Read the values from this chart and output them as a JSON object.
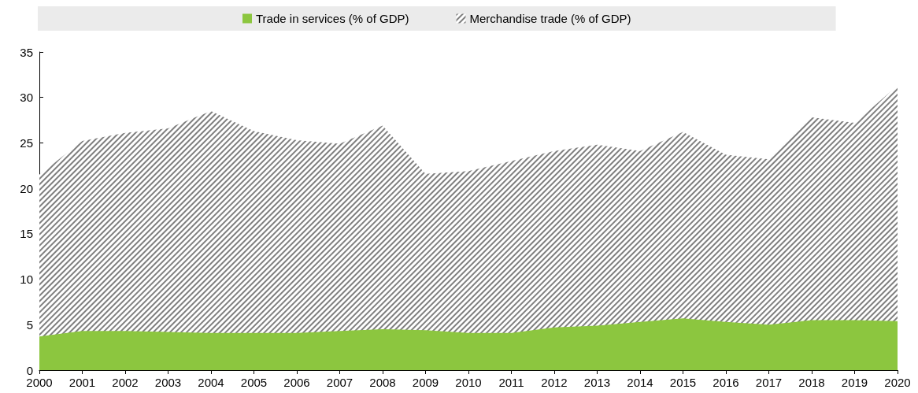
{
  "chart_data": {
    "type": "area",
    "categories": [
      "2000",
      "2001",
      "2002",
      "2003",
      "2004",
      "2005",
      "2006",
      "2007",
      "2008",
      "2009",
      "2010",
      "2011",
      "2012",
      "2013",
      "2014",
      "2015",
      "2016",
      "2017",
      "2018",
      "2019",
      "2020"
    ],
    "series": [
      {
        "name": "Merchandise trade (% of GDP)",
        "color": "#7f7f7f",
        "values": [
          21.5,
          25.2,
          26.1,
          26.6,
          28.5,
          26.3,
          25.3,
          24.9,
          26.9,
          21.6,
          21.9,
          23.0,
          24.1,
          24.8,
          24.1,
          26.2,
          23.7,
          23.2,
          27.8,
          27.2,
          31.3
        ]
      },
      {
        "name": "Trade in services (% of GDP)",
        "color": "#8cc63f",
        "values": [
          3.7,
          4.3,
          4.3,
          4.2,
          4.1,
          4.1,
          4.1,
          4.3,
          4.5,
          4.4,
          4.1,
          4.1,
          4.7,
          4.9,
          5.3,
          5.7,
          5.3,
          5.0,
          5.5,
          5.5,
          5.4
        ]
      }
    ],
    "ylim": [
      0,
      35
    ],
    "yticks": [
      0,
      5,
      10,
      15,
      20,
      25,
      30,
      35
    ],
    "grid": false,
    "legend": "top"
  }
}
